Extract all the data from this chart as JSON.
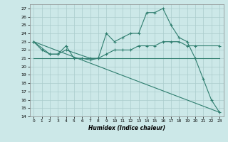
{
  "xlabel": "Humidex (Indice chaleur)",
  "bg_color": "#cce8e8",
  "grid_color": "#aacccc",
  "line_color": "#2e7d6e",
  "ylim": [
    14,
    27.5
  ],
  "xlim": [
    -0.5,
    23.5
  ],
  "yticks": [
    14,
    15,
    16,
    17,
    18,
    19,
    20,
    21,
    22,
    23,
    24,
    25,
    26,
    27
  ],
  "xticks": [
    0,
    1,
    2,
    3,
    4,
    5,
    6,
    7,
    8,
    9,
    10,
    11,
    12,
    13,
    14,
    15,
    16,
    17,
    18,
    19,
    20,
    21,
    22,
    23
  ],
  "line1_x": [
    0,
    1,
    2,
    3,
    4,
    5,
    6,
    7,
    8,
    9,
    10,
    11,
    12,
    13,
    14,
    15,
    16,
    17,
    18,
    19,
    20,
    21,
    22,
    23
  ],
  "line1_y": [
    23,
    22,
    21.5,
    21.5,
    22.5,
    21,
    21,
    20.8,
    21,
    24,
    23,
    23.5,
    24,
    24,
    26.5,
    26.5,
    27,
    25,
    23.5,
    23,
    21,
    18.5,
    16,
    14.5
  ],
  "line2_x": [
    0,
    2,
    3,
    4,
    7,
    8,
    9,
    10,
    11,
    12,
    13,
    14,
    15,
    16,
    17,
    18,
    19,
    20,
    23
  ],
  "line2_y": [
    23,
    21.5,
    21.5,
    22,
    21,
    21,
    21.5,
    22,
    22,
    22,
    22.5,
    22.5,
    22.5,
    23,
    23,
    23,
    22.5,
    22.5,
    22.5
  ],
  "line3_x": [
    0,
    23
  ],
  "line3_y": [
    23,
    14.5
  ],
  "line4_x": [
    0,
    23
  ],
  "line4_y": [
    21,
    21
  ]
}
